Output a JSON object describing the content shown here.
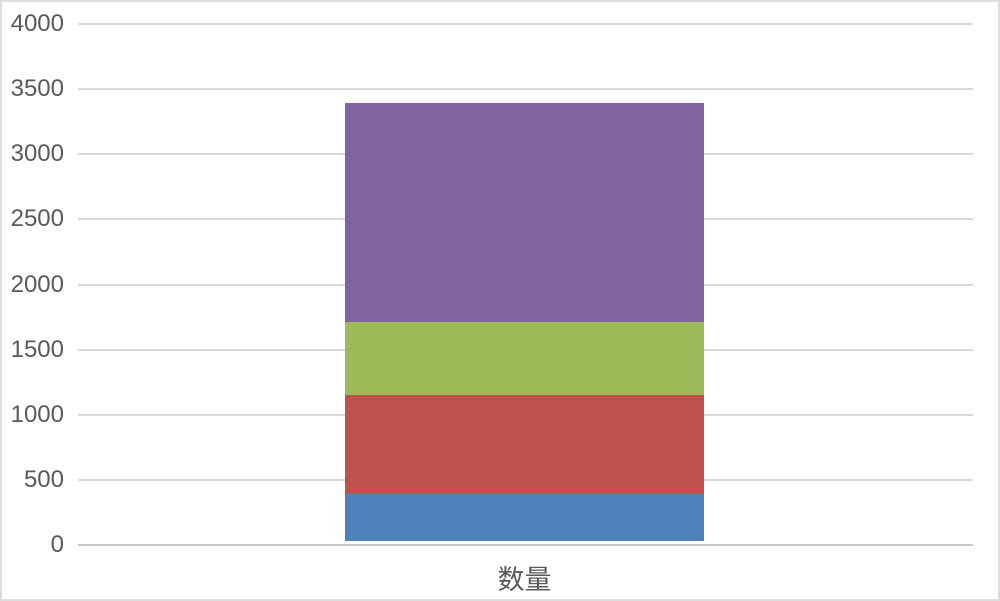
{
  "chart_data": {
    "type": "bar",
    "stacked": true,
    "title": "",
    "xlabel": "",
    "ylabel": "",
    "categories": [
      "数量"
    ],
    "series": [
      {
        "color": "#4F81BD",
        "values": [
          360
        ]
      },
      {
        "color": "#C0504D",
        "values": [
          760
        ]
      },
      {
        "color": "#9BBB59",
        "values": [
          560
        ]
      },
      {
        "color": "#8064A2",
        "values": [
          1680
        ]
      }
    ],
    "stack_total": 3360,
    "ylim": [
      0,
      4000
    ],
    "ytick_step": 500,
    "yticks": [
      0,
      500,
      1000,
      1500,
      2000,
      2500,
      3000,
      3500,
      4000
    ],
    "ytick_labels": [
      "0",
      "500",
      "1000",
      "1500",
      "2000",
      "2500",
      "3000",
      "3500",
      "4000"
    ],
    "grid": true,
    "legend": false
  },
  "colors": {
    "gridline": "#D9D9D9",
    "zero_line": "#C6C6C6",
    "tick_text": "#595959",
    "background": "#FFFFFF",
    "border": "#DCDCDC"
  }
}
